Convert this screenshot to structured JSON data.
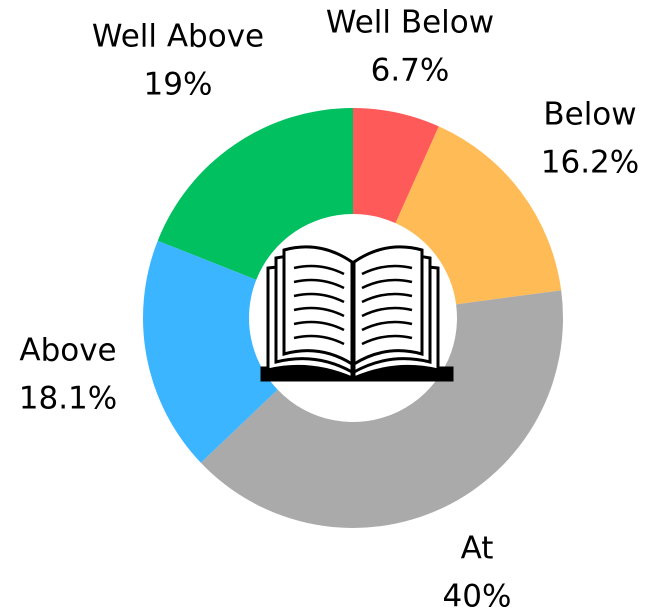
{
  "chart_data": {
    "type": "donut",
    "categories": [
      "Well Below",
      "Below",
      "At",
      "Above",
      "Well Above"
    ],
    "values": [
      6.7,
      16.2,
      40,
      18.1,
      19
    ],
    "value_labels": [
      "6.7%",
      "16.2%",
      "40%",
      "18.1%",
      "19%"
    ],
    "colors": [
      "#ff5a5a",
      "#ffbb55",
      "#aaaaaa",
      "#3bb5ff",
      "#00c060"
    ]
  }
}
